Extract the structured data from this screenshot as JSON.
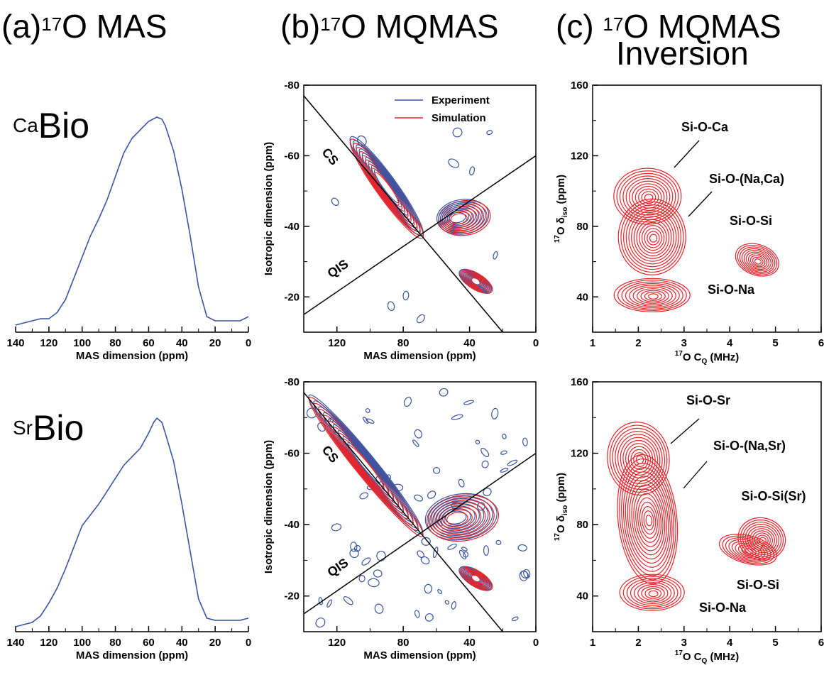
{
  "titles": {
    "a_prefix": "(a)",
    "a_sup": "17",
    "a_main": "O MAS",
    "b_prefix": "(b)",
    "b_sup": "17",
    "b_main": "O MQMAS",
    "c_prefix": "(c) ",
    "c_sup": "17",
    "c_main": "O MQMAS",
    "c_line2": "Inversion"
  },
  "samples": [
    {
      "sup": "Ca",
      "main": "Bio"
    },
    {
      "sup": "Sr",
      "main": "Bio"
    }
  ],
  "colors": {
    "experiment": "#3a55a4",
    "simulation": "#e8252b",
    "axis": "#000000"
  },
  "chart_data": [
    {
      "type": "line",
      "panel": "a-top",
      "xlabel": "MAS dimension (ppm)",
      "xlim": [
        140,
        0
      ],
      "xticks": [
        140,
        120,
        100,
        80,
        60,
        40,
        20,
        0
      ],
      "series": [
        {
          "x": [
            140,
            135,
            130,
            125,
            120,
            115,
            110,
            105,
            100,
            95,
            90,
            85,
            80,
            75,
            70,
            65,
            60,
            55,
            52,
            50,
            45,
            40,
            35,
            30,
            25,
            20,
            15,
            10,
            5,
            0
          ],
          "y": [
            0.02,
            0.03,
            0.04,
            0.05,
            0.05,
            0.08,
            0.14,
            0.24,
            0.34,
            0.44,
            0.52,
            0.61,
            0.72,
            0.83,
            0.9,
            0.94,
            0.98,
            1.0,
            0.99,
            0.96,
            0.84,
            0.66,
            0.44,
            0.2,
            0.06,
            0.04,
            0.04,
            0.04,
            0.04,
            0.06
          ]
        }
      ]
    },
    {
      "type": "line",
      "panel": "a-bottom",
      "xlabel": "MAS dimension (ppm)",
      "xlim": [
        140,
        0
      ],
      "xticks": [
        140,
        120,
        100,
        80,
        60,
        40,
        20,
        0
      ],
      "series": [
        {
          "x": [
            140,
            135,
            130,
            125,
            120,
            115,
            110,
            105,
            100,
            95,
            90,
            85,
            80,
            75,
            70,
            65,
            60,
            57,
            55,
            52,
            50,
            45,
            40,
            35,
            30,
            25,
            20,
            15,
            10,
            5,
            0
          ],
          "y": [
            0.01,
            0.02,
            0.03,
            0.06,
            0.12,
            0.19,
            0.28,
            0.38,
            0.48,
            0.53,
            0.58,
            0.64,
            0.7,
            0.76,
            0.8,
            0.84,
            0.91,
            0.96,
            0.98,
            0.96,
            0.91,
            0.78,
            0.58,
            0.36,
            0.14,
            0.05,
            0.04,
            0.04,
            0.04,
            0.04,
            0.05
          ]
        }
      ]
    },
    {
      "type": "contour",
      "panel": "b-top",
      "xlabel": "MAS dimension (ppm)",
      "ylabel": "Isotropic dimension (ppm)",
      "xlim": [
        140,
        0
      ],
      "ylim": [
        -10,
        -80
      ],
      "xticks": [
        120,
        80,
        40,
        0
      ],
      "yticks": [
        -80,
        -60,
        -40,
        -20
      ],
      "legend": {
        "position": "top-right",
        "entries": [
          "Experiment",
          "Simulation"
        ]
      },
      "line_labels": [
        "CS",
        "QIS"
      ],
      "cs_line": [
        [
          140,
          -77
        ],
        [
          20,
          -10
        ]
      ],
      "qis_line": [
        [
          140,
          -15
        ],
        [
          0,
          -60
        ]
      ],
      "regions": [
        {
          "x": [
            110,
            70
          ],
          "y": [
            -64,
            -38
          ]
        },
        {
          "x": [
            58,
            30
          ],
          "y": [
            -47,
            -38
          ]
        },
        {
          "x": [
            45,
            28
          ],
          "y": [
            -29,
            -20
          ]
        }
      ]
    },
    {
      "type": "contour",
      "panel": "b-bottom",
      "xlabel": "MAS dimension (ppm)",
      "ylabel": "Isotropic dimension (ppm)",
      "xlim": [
        140,
        0
      ],
      "ylim": [
        -10,
        -80
      ],
      "xticks": [
        120,
        80,
        40,
        0
      ],
      "yticks": [
        -80,
        -60,
        -40,
        -20
      ],
      "line_labels": [
        "CS",
        "QIS"
      ],
      "cs_line": [
        [
          140,
          -77
        ],
        [
          20,
          -10
        ]
      ],
      "qis_line": [
        [
          140,
          -15
        ],
        [
          0,
          -60
        ]
      ],
      "regions": [
        {
          "x": [
            135,
            70
          ],
          "y": [
            -75,
            -38
          ]
        },
        {
          "x": [
            65,
            25
          ],
          "y": [
            -48,
            -36
          ]
        },
        {
          "x": [
            45,
            28
          ],
          "y": [
            -30,
            -20
          ]
        }
      ]
    },
    {
      "type": "contour",
      "panel": "c-top",
      "xlabel_sup": "17",
      "xlabel_main": "O C",
      "xlabel_sub": "Q",
      "xlabel_unit": " (MHz)",
      "ylabel_sup": "17",
      "ylabel_main": "O δ",
      "ylabel_sub": "iso",
      "ylabel_unit": " (ppm)",
      "xlim": [
        1,
        6
      ],
      "ylim": [
        20,
        160
      ],
      "xticks": [
        1,
        2,
        3,
        4,
        5,
        6
      ],
      "yticks": [
        40,
        80,
        120,
        160
      ],
      "peaks": [
        {
          "label": "Si-O-Ca",
          "cq": 2.2,
          "diso": 97
        },
        {
          "label": "Si-O-(Na,Ca)",
          "cq": 2.3,
          "diso": 74
        },
        {
          "label": "Si-O-Si",
          "cq": 4.6,
          "diso": 61
        },
        {
          "label": "Si-O-Na",
          "cq": 2.3,
          "diso": 41
        }
      ]
    },
    {
      "type": "contour",
      "panel": "c-bottom",
      "xlabel_sup": "17",
      "xlabel_main": "O C",
      "xlabel_sub": "Q",
      "xlabel_unit": " (MHz)",
      "ylabel_sup": "17",
      "ylabel_main": "O δ",
      "ylabel_sub": "iso",
      "ylabel_unit": " (ppm)",
      "xlim": [
        1,
        6
      ],
      "ylim": [
        20,
        160
      ],
      "xticks": [
        1,
        2,
        3,
        4,
        5,
        6
      ],
      "yticks": [
        40,
        80,
        120,
        160
      ],
      "peaks": [
        {
          "label": "Si-O-Sr",
          "cq": 2.0,
          "diso": 117
        },
        {
          "label": "Si-O-(Na,Sr)",
          "cq": 2.2,
          "diso": 83
        },
        {
          "label": "Si-O-Si(Sr)",
          "cq": 4.7,
          "diso": 72
        },
        {
          "label": "Si-O-Si",
          "cq": 4.4,
          "diso": 66
        },
        {
          "label": "Si-O-Na",
          "cq": 2.3,
          "diso": 42
        }
      ]
    }
  ]
}
